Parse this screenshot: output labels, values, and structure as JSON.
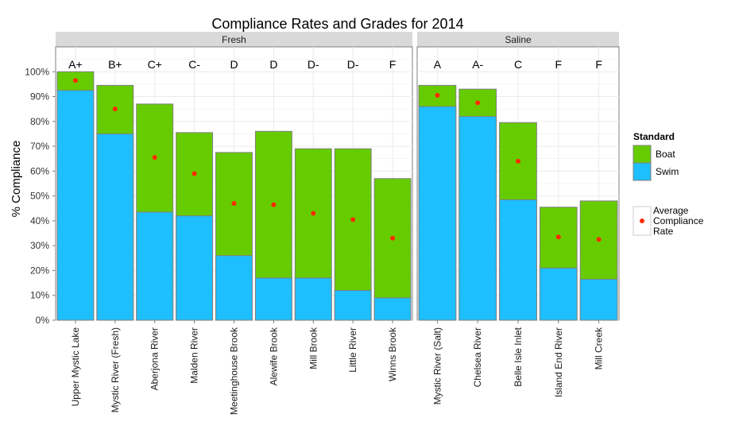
{
  "chart_data": {
    "type": "bar",
    "title": "Compliance Rates and Grades for 2014",
    "ylabel": "% Compliance",
    "xlabel": "",
    "ylim": [
      0,
      1.1
    ],
    "y_ticks": [
      0,
      0.1,
      0.2,
      0.3,
      0.4,
      0.5,
      0.6,
      0.7,
      0.8,
      0.9,
      1.0
    ],
    "y_tick_labels": [
      "0%",
      "10%",
      "20%",
      "30%",
      "40%",
      "50%",
      "60%",
      "70%",
      "80%",
      "90%",
      "100%"
    ],
    "grid": true,
    "legend_placement": "right",
    "legend": {
      "title": "Standard",
      "entries": [
        "Boat",
        "Swim"
      ],
      "point_label": "Average Compliance Rate"
    },
    "colors": {
      "boat": "#66CC00",
      "swim": "#1EBFFF",
      "average": "#FF2A00",
      "panel_bg": "#FFFFFF",
      "strip_bg": "#D9D9D9",
      "grid": "#EBEBEB",
      "bar_outline": "#7F7F7F"
    },
    "panels": [
      {
        "name": "Fresh",
        "categories": [
          "Upper Mystic Lake",
          "Mystic River (Fresh)",
          "Aberjona River",
          "Malden River",
          "Meetinghouse Brook",
          "Alewife Brook",
          "Mill Brook",
          "Little River",
          "Winns Brook"
        ],
        "grades": [
          "A+",
          "B+",
          "C+",
          "C-",
          "D",
          "D",
          "D-",
          "D-",
          "F"
        ],
        "swim": [
          0.925,
          0.75,
          0.435,
          0.42,
          0.26,
          0.17,
          0.17,
          0.12,
          0.09
        ],
        "boat": [
          1.0,
          0.945,
          0.87,
          0.755,
          0.675,
          0.76,
          0.69,
          0.69,
          0.57
        ],
        "average": [
          0.965,
          0.85,
          0.655,
          0.59,
          0.47,
          0.465,
          0.43,
          0.405,
          0.33
        ]
      },
      {
        "name": "Saline",
        "categories": [
          "Mystic River (Salt)",
          "Chelsea River",
          "Belle Isle Inlet",
          "Island End River",
          "Mill Creek"
        ],
        "grades": [
          "A",
          "A-",
          "C",
          "F",
          "F"
        ],
        "swim": [
          0.86,
          0.82,
          0.485,
          0.21,
          0.165
        ],
        "boat": [
          0.945,
          0.93,
          0.795,
          0.455,
          0.48
        ],
        "average": [
          0.905,
          0.875,
          0.64,
          0.335,
          0.325
        ]
      }
    ]
  }
}
